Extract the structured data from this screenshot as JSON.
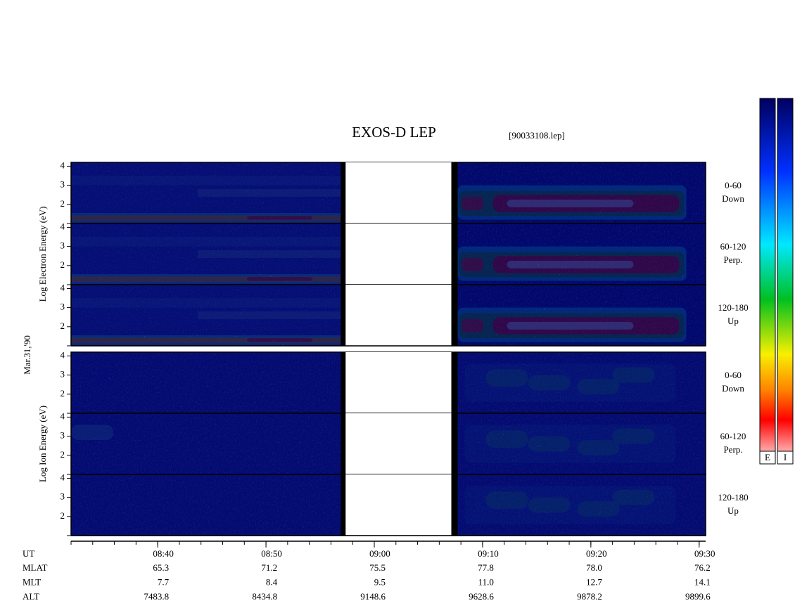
{
  "chart_data": {
    "type": "spectrogram",
    "title": "EXOS-D LEP",
    "subtitle": "[90033108.lep]",
    "date_label": "Mar.31,'90",
    "ylim": [
      1,
      4.2
    ],
    "yticks": [
      2,
      3,
      4
    ],
    "xlim": [
      512,
      570.6
    ],
    "xticks": [
      {
        "value": 520,
        "label": "08:40"
      },
      {
        "value": 530,
        "label": "08:50"
      },
      {
        "value": 540,
        "label": "09:00"
      },
      {
        "value": 550,
        "label": "09:10"
      },
      {
        "value": 560,
        "label": "09:20"
      },
      {
        "value": 570,
        "label": "09:30"
      }
    ],
    "minor_xtick_step": 2,
    "data_gap": [
      536.9,
      547.7
    ],
    "groups": [
      {
        "species": "electron",
        "ylabel": "Log Electron Energy (eV)",
        "panels": [
          {
            "angle": "0-60",
            "direction": "Down"
          },
          {
            "angle": "60-120",
            "direction": "Perp."
          },
          {
            "angle": "120-180",
            "direction": "Up"
          }
        ]
      },
      {
        "species": "ion",
        "ylabel": "Log Ion Energy (eV)",
        "panels": [
          {
            "angle": "0-60",
            "direction": "Down"
          },
          {
            "angle": "60-120",
            "direction": "Perp."
          },
          {
            "angle": "120-180",
            "direction": "Up"
          }
        ]
      }
    ],
    "orbit": {
      "time_label": "UT",
      "rows": [
        {
          "label": "MLAT",
          "values": [
            "65.3",
            "71.2",
            "75.5",
            "77.8",
            "78.0",
            "76.2"
          ]
        },
        {
          "label": "MLT",
          "values": [
            "7.7",
            "8.4",
            "9.5",
            "11.0",
            "12.7",
            "14.1"
          ]
        },
        {
          "label": "ALT",
          "values": [
            "7483.8",
            "8434.8",
            "9148.6",
            "9628.6",
            "9878.2",
            "9899.6"
          ]
        }
      ]
    },
    "colorbar_labels": [
      "E",
      "I"
    ]
  }
}
